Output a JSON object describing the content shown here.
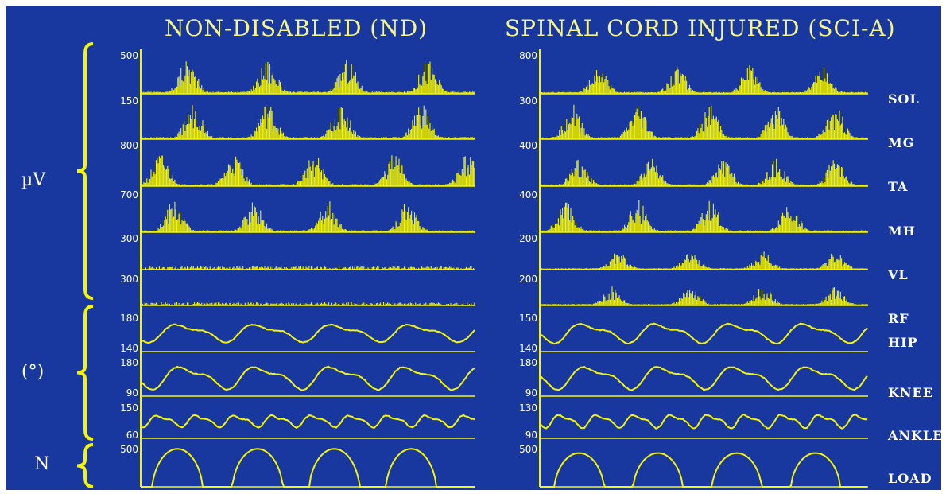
{
  "colors": {
    "background": "#18389f",
    "trace": "#f5f500",
    "text": "#ffffff",
    "title": "#f5f58a"
  },
  "unit_labels": [
    "µV",
    "(°)",
    "N"
  ],
  "chart_data": [
    {
      "type": "line",
      "title": "NON-DISABLED (ND)",
      "series": [
        {
          "name": "SOL",
          "kind": "emg",
          "scale": "500",
          "bursts": [
            0.14,
            0.38,
            0.62,
            0.86
          ],
          "amp": 0.85
        },
        {
          "name": "MG",
          "kind": "emg",
          "scale": "150",
          "bursts": [
            0.16,
            0.38,
            0.6,
            0.84
          ],
          "amp": 0.85
        },
        {
          "name": "TA",
          "kind": "emg",
          "scale": "800",
          "bursts": [
            0.06,
            0.28,
            0.52,
            0.76,
            0.98
          ],
          "amp": 0.7
        },
        {
          "name": "MH",
          "kind": "emg",
          "scale": "700",
          "bursts": [
            0.1,
            0.34,
            0.56,
            0.8
          ],
          "amp": 0.75
        },
        {
          "name": "VL",
          "kind": "flat",
          "scale": "300",
          "bursts": [],
          "amp": 0.1
        },
        {
          "name": "RF",
          "kind": "flat",
          "scale": "300",
          "bursts": [],
          "amp": 0.1
        },
        {
          "name": "HIP",
          "kind": "angle",
          "scale_top": "180",
          "scale_bottom": "140",
          "period": 0.232,
          "phase": 0.07,
          "amp": 0.55
        },
        {
          "name": "KNEE",
          "kind": "angle",
          "scale_top": "180",
          "scale_bottom": "90",
          "period": 0.225,
          "phase": 0.08,
          "amp": 0.7
        },
        {
          "name": "ANKLE",
          "kind": "angle",
          "scale_top": "150",
          "scale_bottom": "60",
          "period": 0.115,
          "phase": 0.03,
          "amp": 0.4
        },
        {
          "name": "LOAD",
          "kind": "load",
          "scale": "500",
          "bursts": [
            0.11,
            0.35,
            0.58,
            0.81
          ],
          "amp": 0.9
        }
      ]
    },
    {
      "type": "line",
      "title": "SPINAL CORD INJURED (SCI-A)",
      "series": [
        {
          "name": "SOL",
          "kind": "emg",
          "scale": "800",
          "bursts": [
            0.18,
            0.42,
            0.64,
            0.86
          ],
          "amp": 0.65
        },
        {
          "name": "MG",
          "kind": "emg",
          "scale": "300",
          "bursts": [
            0.1,
            0.3,
            0.52,
            0.72,
            0.9
          ],
          "amp": 0.8
        },
        {
          "name": "TA",
          "kind": "emg",
          "scale": "400",
          "bursts": [
            0.12,
            0.34,
            0.56,
            0.72,
            0.9
          ],
          "amp": 0.6
        },
        {
          "name": "MH",
          "kind": "emg",
          "scale": "400",
          "bursts": [
            0.08,
            0.3,
            0.52,
            0.76
          ],
          "amp": 0.75
        },
        {
          "name": "VL",
          "kind": "emg",
          "scale": "200",
          "bursts": [
            0.24,
            0.46,
            0.68,
            0.9
          ],
          "amp": 0.5
        },
        {
          "name": "RF",
          "kind": "emg",
          "scale": "200",
          "bursts": [
            0.22,
            0.46,
            0.68,
            0.9
          ],
          "amp": 0.6
        },
        {
          "name": "HIP",
          "kind": "angle",
          "scale_top": "150",
          "scale_bottom": "140",
          "period": 0.225,
          "phase": 0.09,
          "amp": 0.6
        },
        {
          "name": "KNEE",
          "kind": "angle",
          "scale_top": "180",
          "scale_bottom": "90",
          "period": 0.225,
          "phase": 0.1,
          "amp": 0.7
        },
        {
          "name": "ANKLE",
          "kind": "angle",
          "scale_top": "130",
          "scale_bottom": "90",
          "period": 0.113,
          "phase": 0.04,
          "amp": 0.45
        },
        {
          "name": "LOAD",
          "kind": "load",
          "scale": "500",
          "bursts": [
            0.12,
            0.36,
            0.6,
            0.84
          ],
          "amp": 0.8
        }
      ]
    }
  ]
}
